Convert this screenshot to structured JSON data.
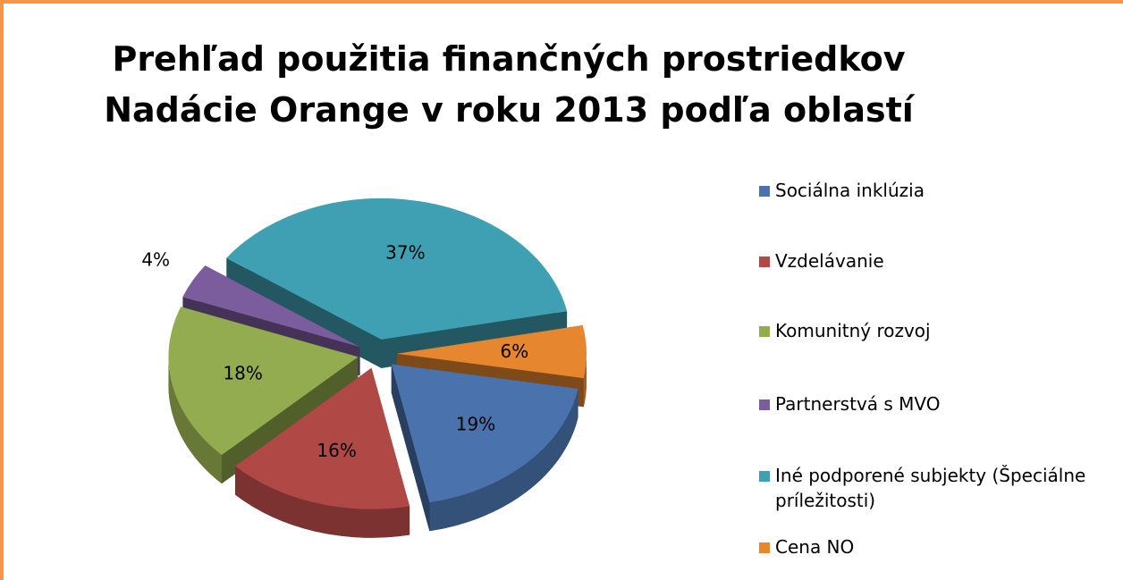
{
  "chart_data": {
    "type": "pie",
    "title": [
      "Prehľad použitia finančných prostriedkov",
      "Nadácie Orange v roku 2013 podľa oblastí"
    ],
    "categories": [
      "Sociálna inklúzia",
      "Vzdelávanie",
      "Komunitný rozvoj",
      "Partnerstvá s MVO",
      "Iné podporené subjekty (Špeciálne príležitosti)",
      "Cena NO"
    ],
    "values": [
      19,
      16,
      18,
      4,
      37,
      6
    ],
    "value_labels": [
      "19%",
      "16%",
      "18%",
      "4%",
      "37%",
      "6%"
    ],
    "colors": [
      "#4a73ad",
      "#b04845",
      "#93ac4f",
      "#7b5c9c",
      "#3fa0b4",
      "#e6862f"
    ],
    "legend": "right"
  }
}
